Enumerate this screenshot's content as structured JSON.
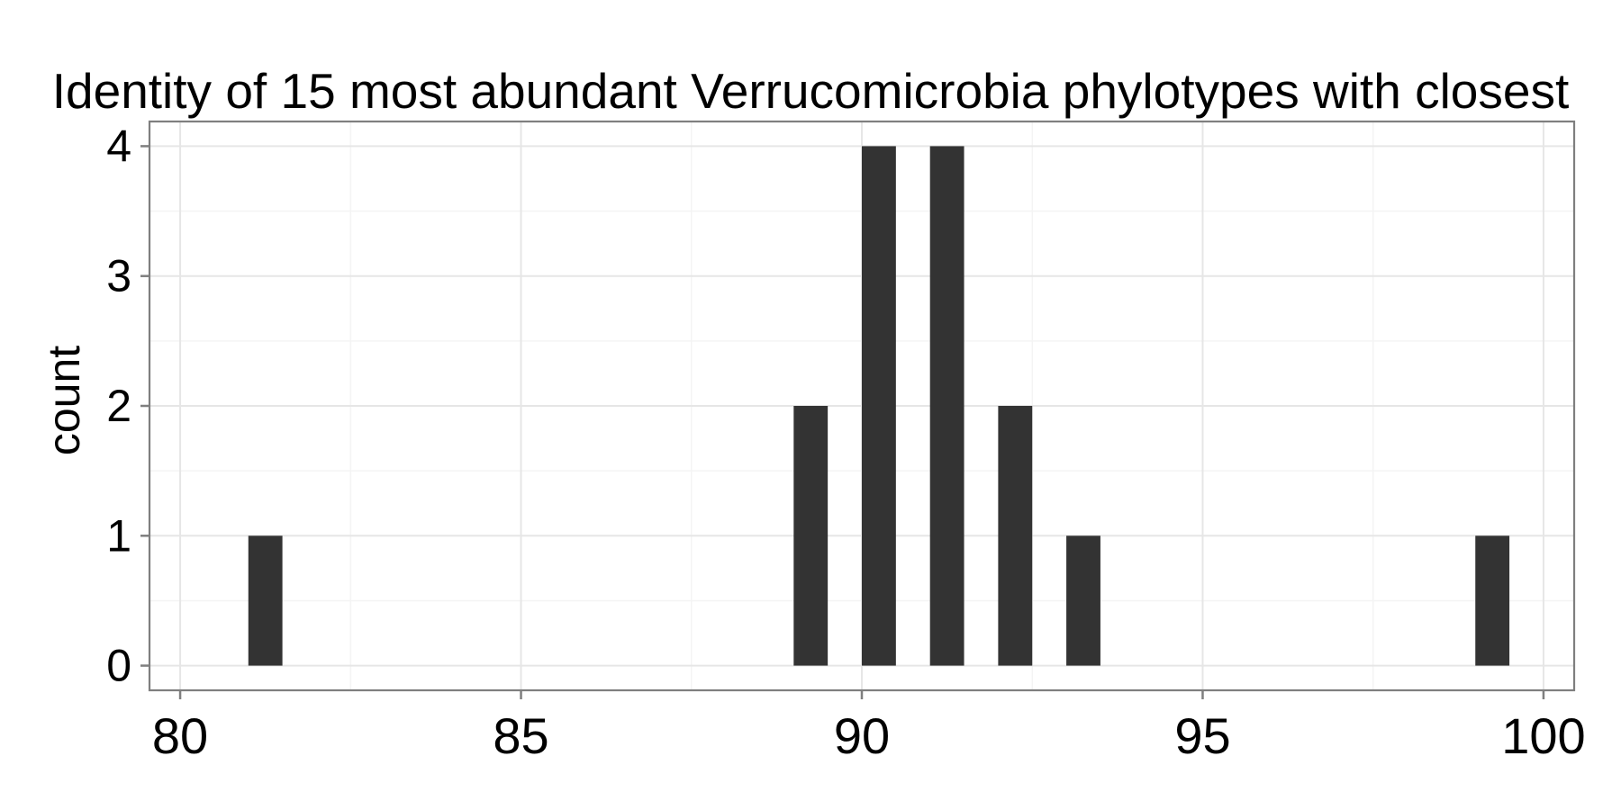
{
  "chart_data": {
    "type": "bar",
    "title": "Identity of 15 most abundant Verrucomicrobia phylotypes with closest",
    "xlabel": "",
    "ylabel": "count",
    "xlim": [
      80,
      100
    ],
    "ylim": [
      0,
      4
    ],
    "x_ticks": [
      "80",
      "85",
      "90",
      "95",
      "100"
    ],
    "y_ticks": [
      "0",
      "1",
      "2",
      "3",
      "4"
    ],
    "bin_width": 0.5,
    "bars": [
      {
        "x": 81.25,
        "count": 1
      },
      {
        "x": 89.25,
        "count": 2
      },
      {
        "x": 90.25,
        "count": 4
      },
      {
        "x": 91.25,
        "count": 4
      },
      {
        "x": 92.25,
        "count": 2
      },
      {
        "x": 93.25,
        "count": 1
      },
      {
        "x": 99.25,
        "count": 1
      }
    ],
    "grid": true,
    "bar_color": "#333333"
  }
}
